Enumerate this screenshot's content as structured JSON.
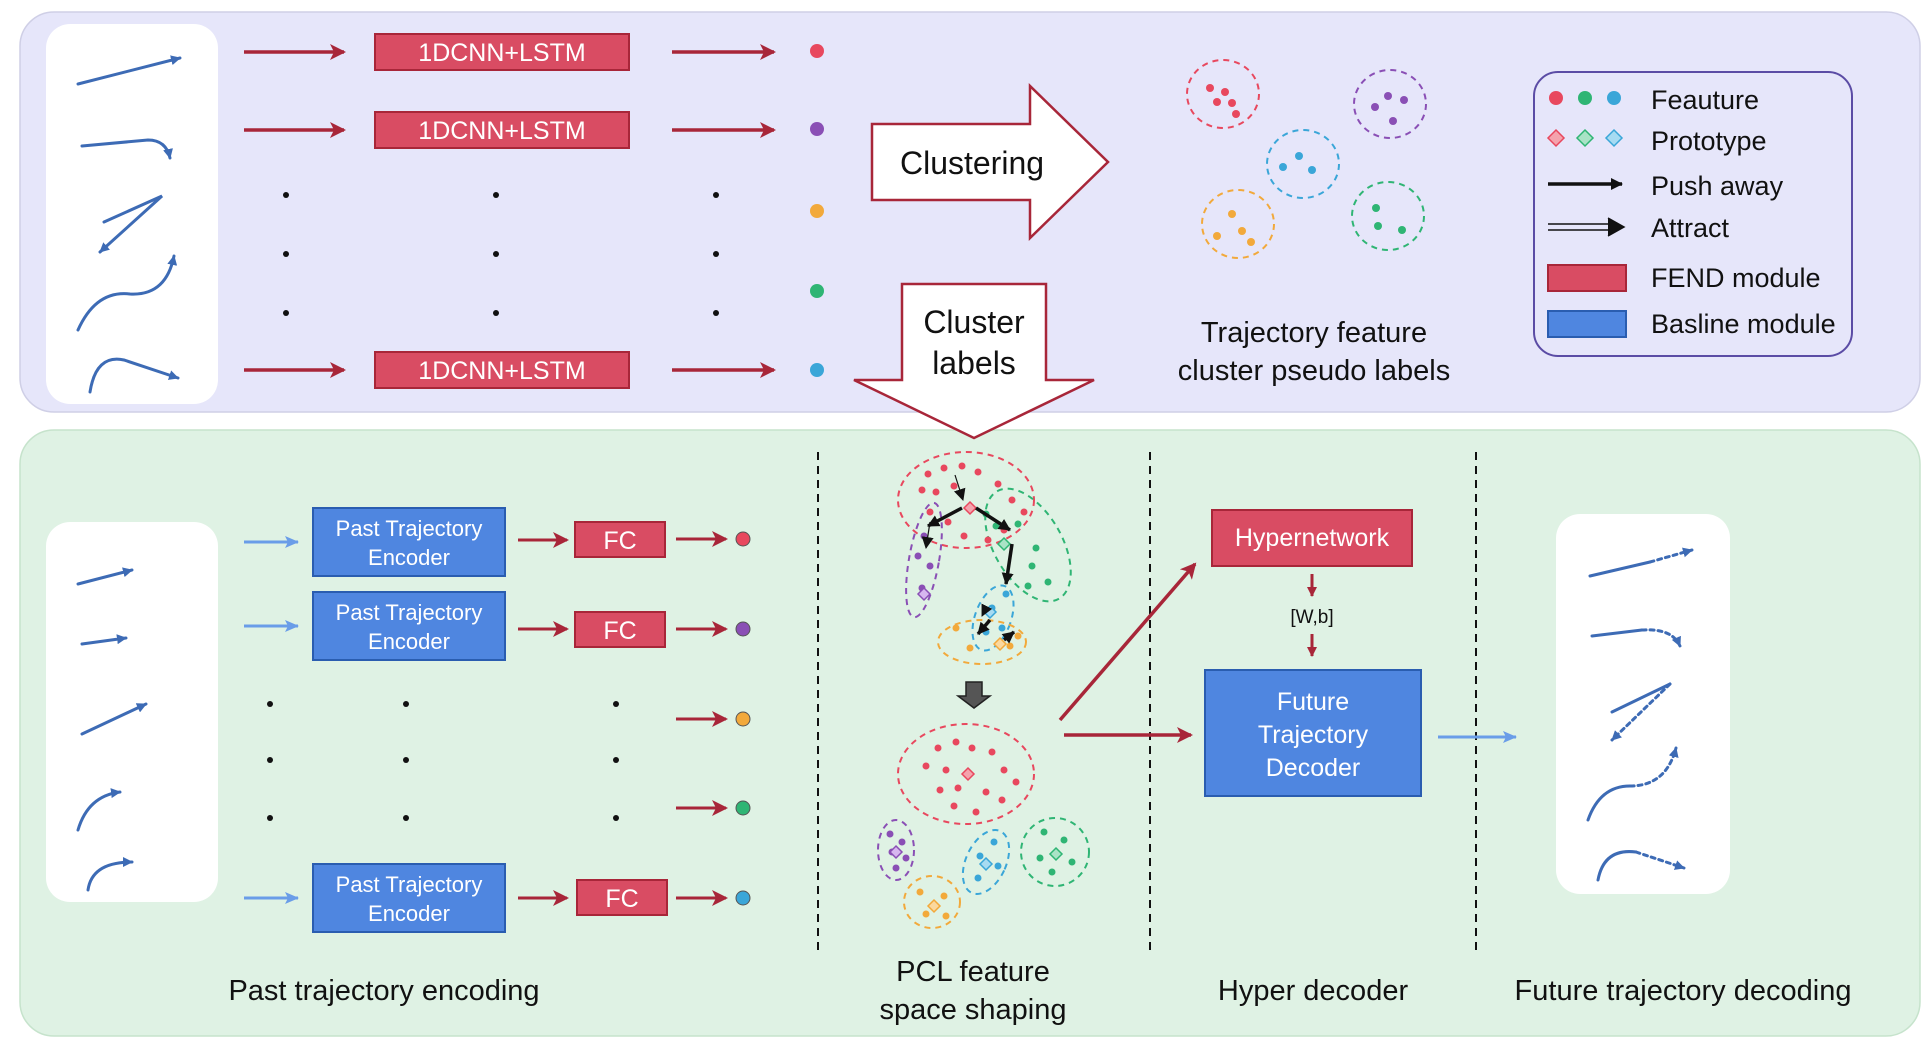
{
  "top": {
    "encoder_label": "1DCNN+LSTM",
    "clustering_label": "Clustering",
    "cluster_labels_line1": "Cluster",
    "cluster_labels_line2": "labels",
    "caption_line1": "Trajectory feature",
    "caption_line2": "cluster pseudo labels"
  },
  "legend": {
    "feature": "Feauture",
    "prototype": "Prototype",
    "push_away": "Push away",
    "attract": "Attract",
    "fend_module": "FEND module",
    "baseline_module": "Basline module"
  },
  "bottom": {
    "encoder_line1": "Past Trajectory",
    "encoder_line2": "Encoder",
    "fc_label": "FC",
    "hypernetwork_label": "Hypernetwork",
    "wb_label": "[W,b]",
    "decoder_line1": "Future",
    "decoder_line2": "Trajectory",
    "decoder_line3": "Decoder",
    "section_past": "Past trajectory encoding",
    "section_pcl_line1": "PCL feature",
    "section_pcl_line2": "space shaping",
    "section_hyper": "Hyper decoder",
    "section_future": "Future trajectory decoding"
  },
  "colors": {
    "top_panel": "#e6e6fa",
    "bottom_panel": "#dff2e4",
    "fend_fill": "#d94c63",
    "fend_stroke": "#a82639",
    "baseline_fill": "#4f86e0",
    "baseline_stroke": "#2a5db0",
    "arrow_red": "#a82639",
    "arrow_blue": "#6a9de8",
    "feat_red": "#e8485e",
    "feat_purple": "#8a4fb5",
    "feat_orange": "#f2a93b",
    "feat_green": "#2fb574",
    "feat_blue": "#3aa6d8"
  }
}
